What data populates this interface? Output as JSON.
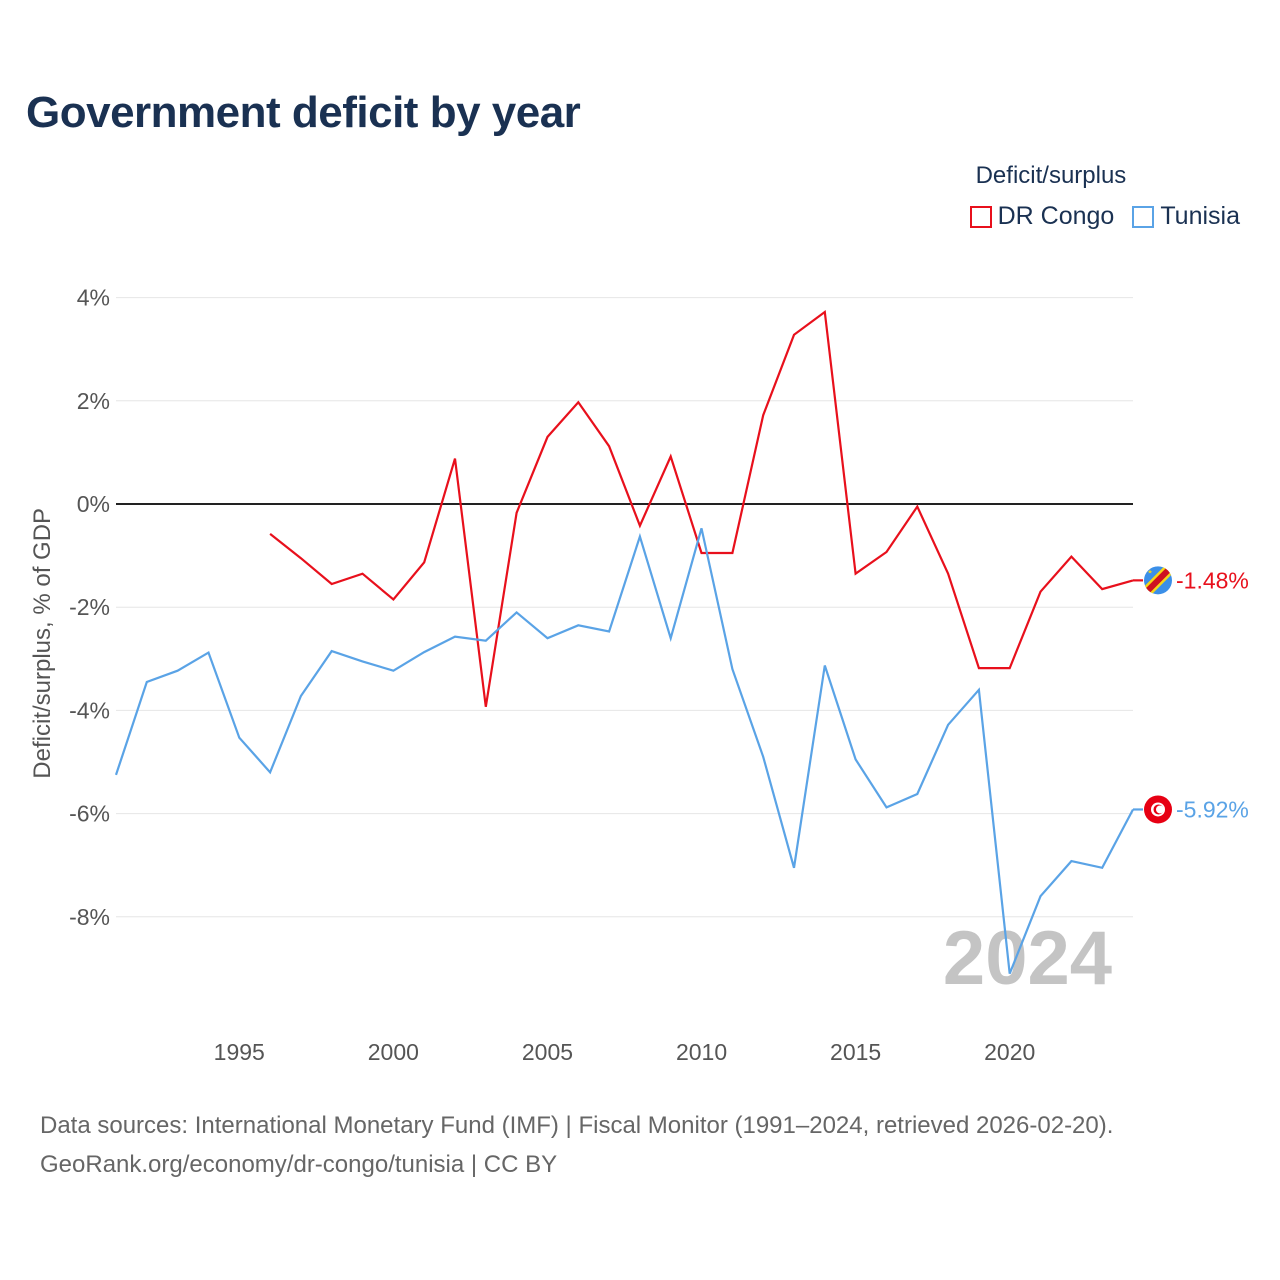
{
  "title": "Government deficit by year",
  "legend": {
    "title": "Deficit/surplus",
    "items": [
      {
        "name": "DR Congo",
        "color": "#e8101c"
      },
      {
        "name": "Tunisia",
        "color": "#5aa3e6"
      }
    ]
  },
  "sources": {
    "line1": "Data sources: International Monetary Fund (IMF) | Fiscal Monitor (1991–2024, retrieved 2026-02-20).",
    "line2": "GeoRank.org/economy/dr-congo/tunisia | CC BY"
  },
  "chart_data": {
    "type": "line",
    "title": "Government deficit by year",
    "ylabel": "Deficit/surplus, % of GDP",
    "xlabel": "",
    "xlim": [
      1991,
      2024
    ],
    "ylim": [
      -10,
      4.5
    ],
    "yticks": [
      4,
      2,
      0,
      -2,
      -4,
      -6,
      -8
    ],
    "ytick_labels": [
      "4%",
      "2%",
      "0%",
      "-2%",
      "-4%",
      "-6%",
      "-8%"
    ],
    "xticks": [
      1995,
      2000,
      2005,
      2010,
      2015,
      2020
    ],
    "xtick_labels": [
      "1995",
      "2000",
      "2005",
      "2010",
      "2015",
      "2020"
    ],
    "watermark_year": "2024",
    "series": [
      {
        "name": "DR Congo",
        "color": "#e8101c",
        "end_label": "-1.48%",
        "flag_icon": "dr-congo-flag-icon",
        "x": [
          1996,
          1997,
          1998,
          1999,
          2000,
          2001,
          2002,
          2003,
          2004,
          2005,
          2006,
          2007,
          2008,
          2009,
          2010,
          2011,
          2012,
          2013,
          2014,
          2015,
          2016,
          2017,
          2018,
          2019,
          2020,
          2021,
          2022,
          2023,
          2024
        ],
        "values": [
          -0.58,
          -1.05,
          -1.55,
          -1.35,
          -1.85,
          -1.13,
          0.88,
          -3.93,
          -0.17,
          1.3,
          1.97,
          1.12,
          -0.42,
          0.92,
          -0.95,
          -0.95,
          1.72,
          3.28,
          3.72,
          -1.35,
          -0.93,
          -0.05,
          -1.35,
          -3.18,
          -3.18,
          -1.7,
          -1.02,
          -1.65,
          -1.48
        ]
      },
      {
        "name": "Tunisia",
        "color": "#5aa3e6",
        "end_label": "-5.92%",
        "flag_icon": "tunisia-flag-icon",
        "x": [
          1991,
          1992,
          1993,
          1994,
          1995,
          1996,
          1997,
          1998,
          1999,
          2000,
          2001,
          2002,
          2003,
          2004,
          2005,
          2006,
          2007,
          2008,
          2009,
          2010,
          2011,
          2012,
          2013,
          2014,
          2015,
          2016,
          2017,
          2018,
          2019,
          2020,
          2021,
          2022,
          2023,
          2024
        ],
        "values": [
          -5.25,
          -3.45,
          -3.23,
          -2.88,
          -4.53,
          -5.2,
          -3.72,
          -2.85,
          -3.05,
          -3.23,
          -2.87,
          -2.57,
          -2.65,
          -2.1,
          -2.6,
          -2.35,
          -2.47,
          -0.63,
          -2.6,
          -0.47,
          -3.2,
          -4.9,
          -7.05,
          -3.13,
          -4.95,
          -5.88,
          -5.62,
          -4.28,
          -3.6,
          -9.1,
          -7.6,
          -6.92,
          -7.05,
          -5.92
        ]
      }
    ]
  }
}
